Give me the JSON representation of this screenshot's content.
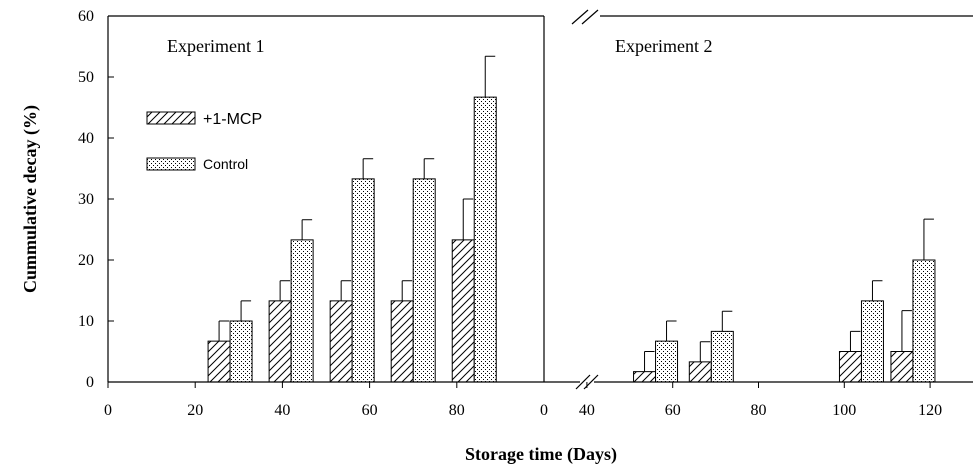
{
  "chart_data": {
    "type": "bar",
    "ylabel": "Cummulative decay (%)",
    "xlabel": "Storage time (Days)",
    "ylim": [
      0,
      60
    ],
    "yticks": [
      "0",
      "10",
      "20",
      "30",
      "40",
      "50",
      "60"
    ],
    "legend": {
      "placement": "upper-left of Experiment 1 panel",
      "items": [
        {
          "label": "+1-MCP",
          "pattern": "hatch"
        },
        {
          "label": "Control",
          "pattern": "dots"
        }
      ]
    },
    "panels": [
      {
        "title": "Experiment 1",
        "xlim": [
          0,
          100
        ],
        "xticks": [
          "0",
          "20",
          "40",
          "60",
          "80"
        ],
        "groups": [
          {
            "x": 28,
            "series": {
              "+1-MCP": {
                "value": 6.7,
                "error": 3.3
              },
              "Control": {
                "value": 10.0,
                "error": 3.3
              }
            }
          },
          {
            "x": 42,
            "series": {
              "+1-MCP": {
                "value": 13.3,
                "error": 3.3
              },
              "Control": {
                "value": 23.3,
                "error": 3.3
              }
            }
          },
          {
            "x": 56,
            "series": {
              "+1-MCP": {
                "value": 13.3,
                "error": 3.3
              },
              "Control": {
                "value": 33.3,
                "error": 3.3
              }
            }
          },
          {
            "x": 70,
            "series": {
              "+1-MCP": {
                "value": 13.3,
                "error": 3.3
              },
              "Control": {
                "value": 33.3,
                "error": 3.3
              }
            }
          },
          {
            "x": 84,
            "series": {
              "+1-MCP": {
                "value": 23.3,
                "error": 6.7
              },
              "Control": {
                "value": 46.7,
                "error": 6.7
              }
            }
          }
        ]
      },
      {
        "title": "Experiment 2",
        "axis_break": true,
        "xlim": [
          30,
          130
        ],
        "xticks": [
          "0",
          "40",
          "60",
          "80",
          "100",
          "120"
        ],
        "groups": [
          {
            "x": 56,
            "series": {
              "+1-MCP": {
                "value": 1.7,
                "error": 3.3
              },
              "Control": {
                "value": 6.7,
                "error": 3.3
              }
            }
          },
          {
            "x": 69,
            "series": {
              "+1-MCP": {
                "value": 3.3,
                "error": 3.3
              },
              "Control": {
                "value": 8.3,
                "error": 3.3
              }
            }
          },
          {
            "x": 104,
            "series": {
              "+1-MCP": {
                "value": 5.0,
                "error": 3.3
              },
              "Control": {
                "value": 13.3,
                "error": 3.3
              }
            }
          },
          {
            "x": 116,
            "series": {
              "+1-MCP": {
                "value": 5.0,
                "error": 6.7
              },
              "Control": {
                "value": 20.0,
                "error": 6.7
              }
            }
          }
        ]
      }
    ]
  }
}
